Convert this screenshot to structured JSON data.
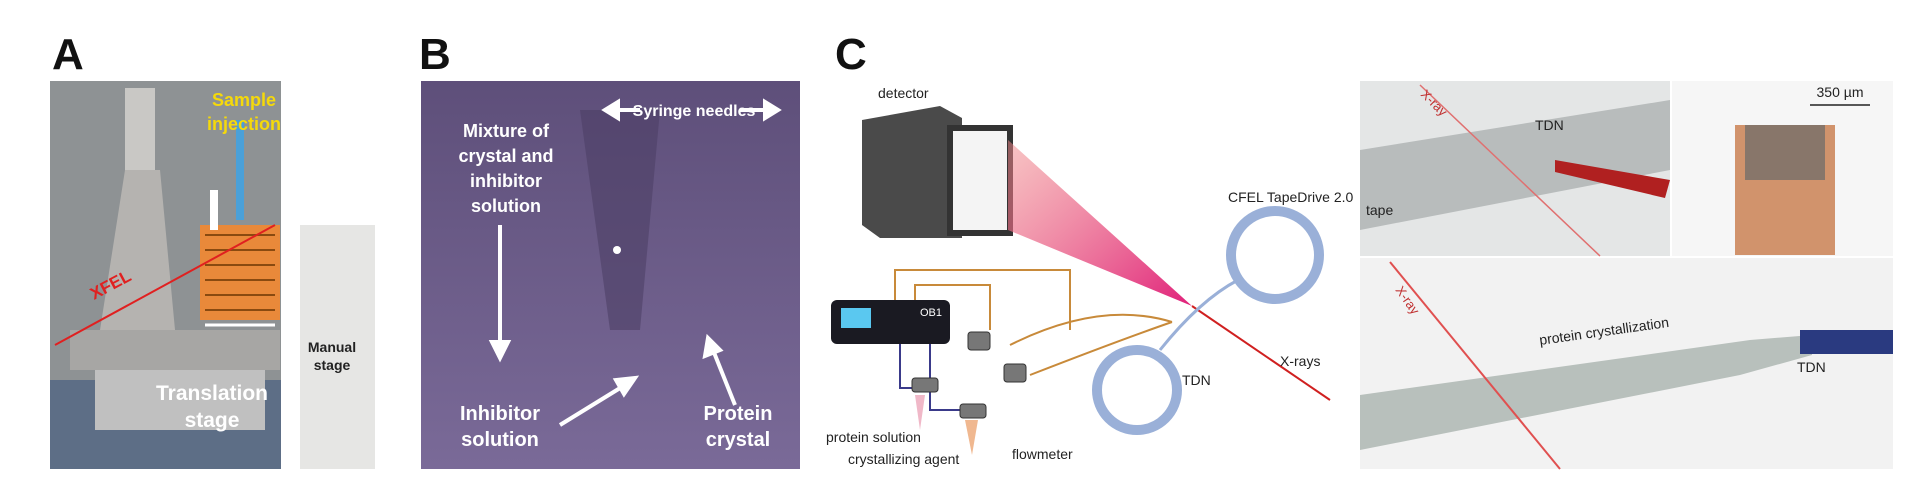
{
  "panel_a": {
    "label": "A",
    "sample_injection": [
      "Sample",
      "injection"
    ],
    "xfel": "XFEL",
    "manual_stage": [
      "Manual",
      "stage"
    ],
    "translation_stage": [
      "Translation",
      "stage"
    ]
  },
  "panel_b": {
    "label": "B",
    "syringe_needles": "Syringe needles",
    "mixture": [
      "Mixture of",
      "crystal and",
      "inhibitor",
      "solution"
    ],
    "inhibitor_solution": [
      "Inhibitor",
      "solution"
    ],
    "protein_crystal": [
      "Protein",
      "crystal"
    ]
  },
  "panel_c": {
    "label": "C",
    "detector": "detector",
    "ob1": "OB1",
    "tapedrive": "CFEL TapeDrive 2.0",
    "tdn": "TDN",
    "xrays": "X-rays",
    "protein_solution": "protein solution",
    "crystallizing_agent": "crystallizing agent",
    "flowmeter": "flowmeter",
    "inset_top": {
      "xray": "X-ray",
      "tdn": "TDN",
      "tape": "tape",
      "scale": "350 µm"
    },
    "inset_bottom": {
      "xray": "X-ray",
      "protein_crystallization": "protein crystallization",
      "tdn": "TDN"
    }
  }
}
